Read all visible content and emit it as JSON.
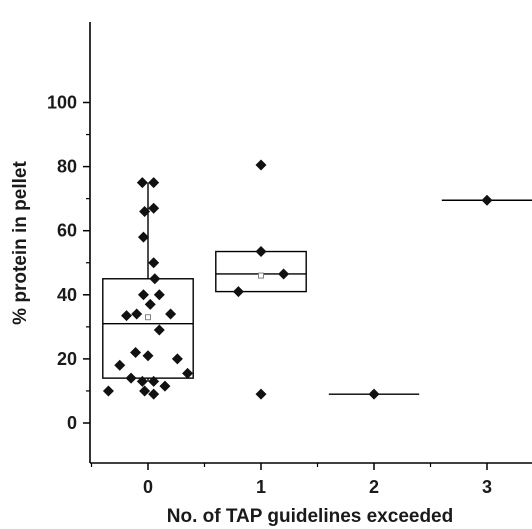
{
  "chart_data": {
    "type": "box",
    "xlabel": "No. of TAP guidelines exceeded",
    "ylabel": "% protein in pellet",
    "ylim": [
      -10,
      100
    ],
    "xlim": [
      -0.5,
      3.4
    ],
    "yticks": [
      0,
      20,
      40,
      60,
      80,
      100
    ],
    "xticks": [
      0,
      1,
      2,
      3
    ],
    "grid": false,
    "groups": [
      {
        "x": 0,
        "box": {
          "q1": 14,
          "median": 31,
          "q3": 45,
          "mean": 33,
          "whisker_low": 13,
          "whisker_high": 75
        },
        "points": [
          {
            "dx": -0.05,
            "y": 75
          },
          {
            "dx": 0.05,
            "y": 75
          },
          {
            "dx": 0.05,
            "y": 67
          },
          {
            "dx": -0.03,
            "y": 66
          },
          {
            "dx": -0.04,
            "y": 58
          },
          {
            "dx": 0.05,
            "y": 50
          },
          {
            "dx": 0.06,
            "y": 45
          },
          {
            "dx": -0.04,
            "y": 40
          },
          {
            "dx": 0.1,
            "y": 40
          },
          {
            "dx": 0.02,
            "y": 37
          },
          {
            "dx": -0.19,
            "y": 33.5
          },
          {
            "dx": -0.1,
            "y": 34
          },
          {
            "dx": 0.2,
            "y": 34
          },
          {
            "dx": 0.1,
            "y": 29
          },
          {
            "dx": -0.11,
            "y": 22
          },
          {
            "dx": 0.0,
            "y": 21
          },
          {
            "dx": 0.26,
            "y": 20
          },
          {
            "dx": -0.25,
            "y": 18
          },
          {
            "dx": 0.35,
            "y": 15.5
          },
          {
            "dx": -0.15,
            "y": 14
          },
          {
            "dx": -0.05,
            "y": 13
          },
          {
            "dx": 0.05,
            "y": 13
          },
          {
            "dx": 0.15,
            "y": 11.5
          },
          {
            "dx": -0.35,
            "y": 10
          },
          {
            "dx": -0.03,
            "y": 10
          },
          {
            "dx": 0.05,
            "y": 9
          }
        ]
      },
      {
        "x": 1,
        "box": {
          "q1": 41,
          "median": 46.5,
          "q3": 53.5,
          "mean": 46
        },
        "points": [
          {
            "dx": 0.0,
            "y": 80.5
          },
          {
            "dx": 0.0,
            "y": 53.5
          },
          {
            "dx": 0.2,
            "y": 46.5
          },
          {
            "dx": -0.2,
            "y": 41
          },
          {
            "dx": 0.0,
            "y": 9
          }
        ]
      },
      {
        "x": 2,
        "box": {
          "median": 9
        },
        "points": [
          {
            "dx": 0.0,
            "y": 9
          }
        ]
      },
      {
        "x": 3,
        "box": {
          "median": 69.5
        },
        "points": [
          {
            "dx": 0.0,
            "y": 69.5
          }
        ]
      }
    ]
  }
}
